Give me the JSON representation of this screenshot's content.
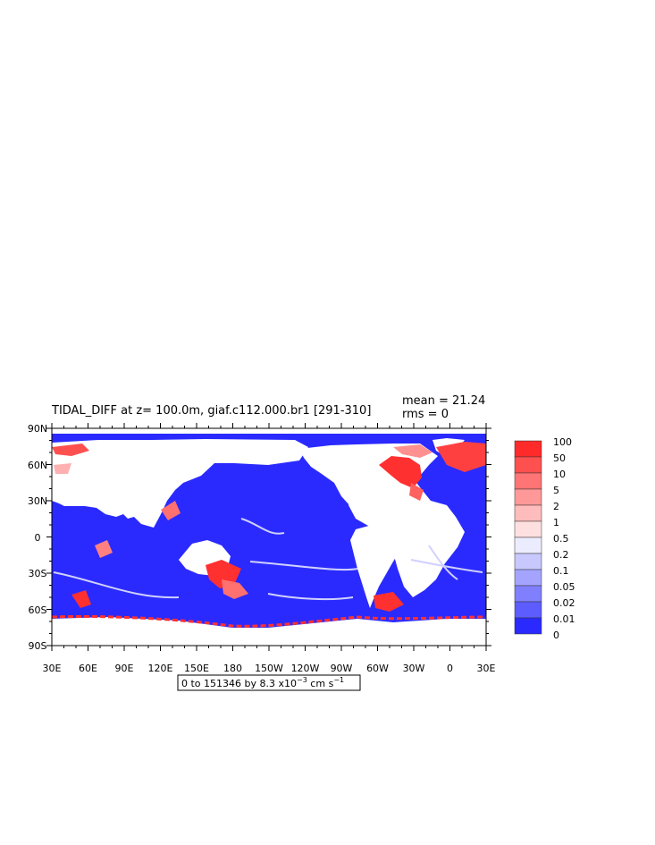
{
  "header": {
    "title": "TIDAL_DIFF at z= 100.0m, giaf.c112.000.br1 [291-310]",
    "mean": "mean = 21.24",
    "rms": "rms = 0"
  },
  "axes": {
    "lat_labels": [
      "90N",
      "60N",
      "30N",
      "0",
      "30S",
      "60S",
      "90S"
    ],
    "lon_labels": [
      "30E",
      "60E",
      "90E",
      "120E",
      "150E",
      "180",
      "150W",
      "120W",
      "90W",
      "60W",
      "30W",
      "0",
      "30E"
    ]
  },
  "range_box": {
    "text_main": "0 to 151346 by 8.3 x10",
    "exponent": "−3",
    "unit": " cm s",
    "unit_exponent": "−1"
  },
  "colorbar": {
    "levels": [
      "100",
      "50",
      "10",
      "5",
      "2",
      "1",
      "0.5",
      "0.2",
      "0.1",
      "0.05",
      "0.02",
      "0.01",
      "0"
    ],
    "colors_top_to_bottom": [
      "#ff2a2a",
      "#ff5050",
      "#ff7474",
      "#ff9898",
      "#ffbcbc",
      "#ffe0e0",
      "#ececff",
      "#c8c8ff",
      "#a4a4ff",
      "#8080ff",
      "#5c5cff",
      "#2a2aff"
    ]
  },
  "colors": {
    "ocean": "#2a2aff",
    "land": "#ffffff",
    "high": "#ff3030",
    "mid": "#ff9090",
    "low": "#c8c8ff"
  }
}
